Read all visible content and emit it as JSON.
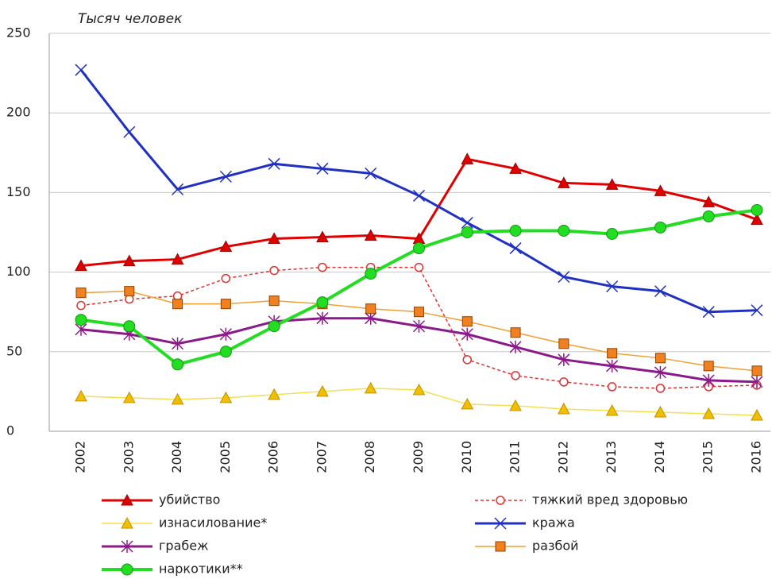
{
  "chart_data": {
    "type": "line",
    "title": "Тысяч человек",
    "x": [
      "2002",
      "2003",
      "2004",
      "2005",
      "2006",
      "2007",
      "2008",
      "2009",
      "2010",
      "2011",
      "2012",
      "2013",
      "2014",
      "2015",
      "2016"
    ],
    "ylim": [
      0,
      250
    ],
    "yticks": [
      0,
      50,
      100,
      150,
      200,
      250
    ],
    "grid": true,
    "series": [
      {
        "name": "убийство",
        "color": "#e00000",
        "marker": "triangle",
        "values": [
          104,
          107,
          108,
          116,
          121,
          122,
          123,
          121,
          171,
          165,
          156,
          155,
          151,
          144,
          133
        ]
      },
      {
        "name": "тяжкий вред здоровью",
        "color": "#e03030",
        "marker": "open-circle",
        "dash": true,
        "values": [
          79,
          83,
          85,
          96,
          101,
          103,
          103,
          103,
          45,
          35,
          31,
          28,
          27,
          28,
          29
        ]
      },
      {
        "name": "изнасилование*",
        "color": "#f5e050",
        "marker": "triangle",
        "values": [
          22,
          21,
          20,
          21,
          23,
          25,
          27,
          26,
          17,
          16,
          14,
          13,
          12,
          11,
          10
        ]
      },
      {
        "name": "кража",
        "color": "#2030c0",
        "marker": "x",
        "values": [
          227,
          188,
          152,
          160,
          168,
          165,
          162,
          148,
          131,
          115,
          97,
          91,
          88,
          75,
          76
        ]
      },
      {
        "name": "грабеж",
        "color": "#8a1a8a",
        "marker": "star",
        "values": [
          64,
          61,
          55,
          61,
          69,
          71,
          71,
          66,
          61,
          53,
          45,
          41,
          37,
          32,
          31
        ]
      },
      {
        "name": "разбой",
        "color": "#f0a030",
        "marker": "square",
        "values": [
          87,
          88,
          80,
          80,
          82,
          80,
          77,
          75,
          69,
          62,
          55,
          49,
          46,
          41,
          38
        ]
      },
      {
        "name": "наркотики**",
        "color": "#22dd22",
        "marker": "circle",
        "values": [
          70,
          66,
          42,
          50,
          66,
          81,
          99,
          115,
          125,
          126,
          126,
          124,
          128,
          135,
          139
        ]
      }
    ]
  }
}
